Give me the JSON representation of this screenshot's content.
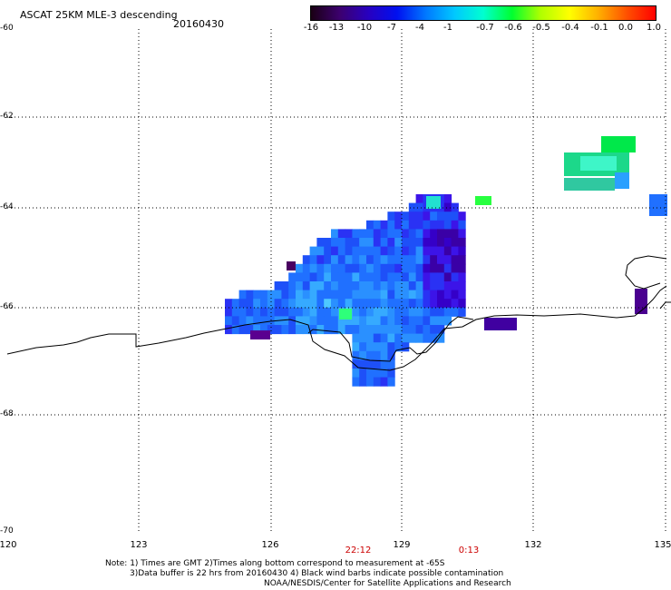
{
  "header": {
    "title": "ASCAT 25KM MLE-3 descending",
    "date": "20160430"
  },
  "colorbar": {
    "ticks": [
      "-16",
      "-13",
      "-10",
      "-7",
      "-4",
      "-1",
      "-0.7",
      "-0.6",
      "-0.5",
      "-0.4",
      "-0.1",
      "0.0",
      "1.0"
    ],
    "colors": [
      "#1a0014",
      "#3c006e",
      "#2800c0",
      "#0010f0",
      "#0078ff",
      "#00c8ff",
      "#00ffd0",
      "#00ff30",
      "#b0ff00",
      "#ffff00",
      "#ffb000",
      "#ff5000",
      "#ff0000"
    ]
  },
  "map": {
    "lat_labels": [
      "-60",
      "-62",
      "-64",
      "-66",
      "-68",
      "-70"
    ],
    "lon_labels": [
      "120",
      "123",
      "126",
      "129",
      "132",
      "135"
    ],
    "time_labels": [
      "22:12",
      "0:13"
    ]
  },
  "footer": {
    "note_line1": "Note: 1) Times are GMT 2)Times along bottom correspond to measurement at -65S",
    "note_line2": "3)Data buffer is 22 hrs from 20160430 4) Black wind barbs indicate possible contamination",
    "credit": "NOAA/NESDIS/Center for Satellite Applications and Research"
  }
}
